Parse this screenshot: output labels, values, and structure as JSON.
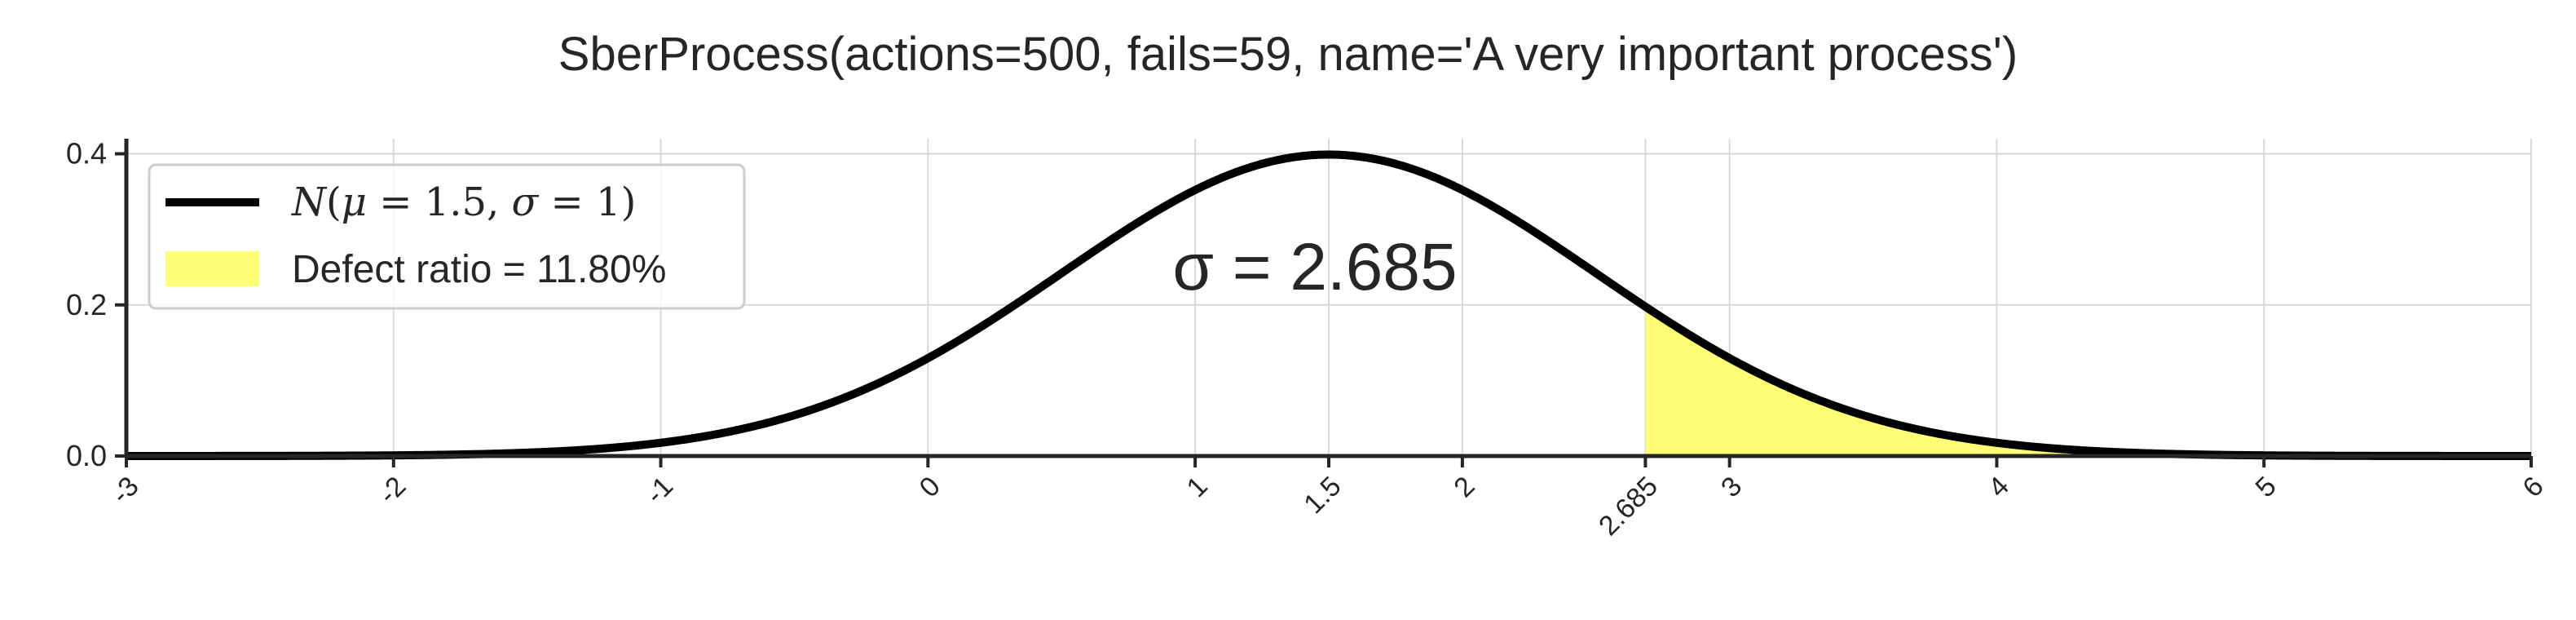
{
  "chart_data": {
    "type": "line",
    "title": "SberProcess(actions=500, fails=59, name='A very important process')",
    "xlabel": "",
    "ylabel": "",
    "xlim": [
      -3,
      6
    ],
    "ylim": [
      0,
      0.42
    ],
    "xticks": [
      "-3",
      "-2",
      "-1",
      "0",
      "1",
      "1.5",
      "2",
      "2.685",
      "3",
      "4",
      "5",
      "6"
    ],
    "xtick_values": [
      -3,
      -2,
      -1,
      0,
      1,
      1.5,
      2,
      2.685,
      3,
      4,
      5,
      6
    ],
    "yticks": [
      "0.0",
      "0.2",
      "0.4"
    ],
    "ytick_values": [
      0.0,
      0.2,
      0.4
    ],
    "grid": true,
    "distribution": {
      "mu": 1.5,
      "sigma": 1
    },
    "threshold": 2.685,
    "annotation": "σ = 2.685",
    "series": [
      {
        "name": "N(μ = 1.5, σ = 1)",
        "color": "#000000"
      }
    ],
    "shaded_region": {
      "name": "Defect ratio = 11.80%",
      "from": 2.685,
      "to": 6,
      "color": "#ffff66"
    },
    "legend": {
      "placement": "upper-left",
      "line_label_parts": [
        "N",
        "(",
        "μ",
        " = 1.5, ",
        "σ",
        " = 1)"
      ],
      "fill_label": "Defect ratio = 11.80%"
    }
  }
}
